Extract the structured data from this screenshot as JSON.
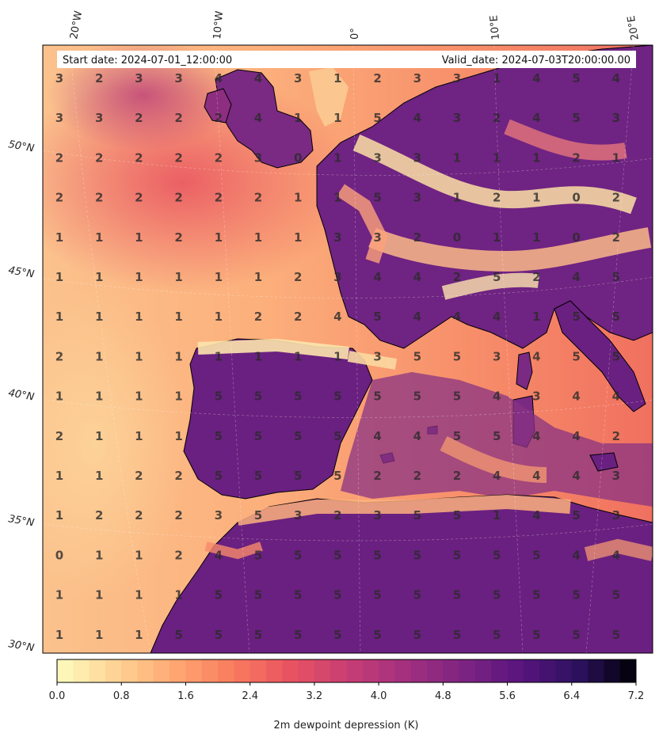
{
  "header": {
    "start_date": "Start date: 2024-07-01_12:00:00",
    "valid_date": "Valid_date: 2024-07-03T20:00:00.00"
  },
  "axes": {
    "lon_labels": [
      "20°W",
      "10°W",
      "0°",
      "10°E",
      "20°E"
    ],
    "lat_labels": [
      "50°N",
      "45°N",
      "40°N",
      "35°N",
      "30°N"
    ]
  },
  "colorbar": {
    "label": "2m dewpoint depression (K)",
    "ticks": [
      "0.0",
      "0.8",
      "1.6",
      "2.4",
      "3.2",
      "4.0",
      "4.8",
      "5.6",
      "6.4",
      "7.2"
    ],
    "min": 0.0,
    "max": 7.2,
    "levels": 36,
    "colormap": "magma_r"
  },
  "colors": {
    "ocean_base": "#f9a46e",
    "dry_land": "#6a2080",
    "coastline": "#000000"
  },
  "chart_data": {
    "type": "heatmap",
    "values_grid": [
      [
        3,
        2,
        3,
        3,
        4,
        4,
        3,
        1,
        2,
        3,
        3,
        1,
        4,
        5,
        4
      ],
      [
        3,
        3,
        2,
        2,
        2,
        4,
        1,
        1,
        5,
        4,
        3,
        2,
        4,
        5,
        3
      ],
      [
        2,
        2,
        2,
        2,
        2,
        3,
        0,
        1,
        3,
        3,
        1,
        1,
        1,
        2,
        1
      ],
      [
        2,
        2,
        2,
        2,
        2,
        2,
        1,
        1,
        5,
        3,
        1,
        2,
        1,
        0,
        2
      ],
      [
        1,
        1,
        1,
        2,
        1,
        1,
        1,
        3,
        3,
        2,
        0,
        1,
        1,
        0,
        2
      ],
      [
        1,
        1,
        1,
        1,
        1,
        1,
        2,
        3,
        4,
        4,
        2,
        5,
        2,
        4,
        5
      ],
      [
        1,
        1,
        1,
        1,
        1,
        2,
        2,
        4,
        5,
        4,
        4,
        4,
        1,
        5,
        5
      ],
      [
        2,
        1,
        1,
        1,
        1,
        1,
        1,
        1,
        3,
        5,
        5,
        3,
        4,
        5,
        5
      ],
      [
        1,
        1,
        1,
        1,
        5,
        5,
        5,
        5,
        5,
        5,
        5,
        4,
        3,
        4,
        4
      ],
      [
        2,
        1,
        1,
        1,
        5,
        5,
        5,
        5,
        4,
        4,
        5,
        5,
        4,
        4,
        2
      ],
      [
        1,
        1,
        2,
        2,
        5,
        5,
        5,
        5,
        2,
        2,
        2,
        4,
        4,
        4,
        3
      ],
      [
        1,
        2,
        2,
        2,
        3,
        5,
        3,
        2,
        3,
        5,
        5,
        1,
        4,
        5,
        3
      ],
      [
        0,
        1,
        1,
        2,
        4,
        5,
        5,
        5,
        5,
        5,
        5,
        5,
        5,
        4,
        4
      ],
      [
        1,
        1,
        1,
        1,
        5,
        5,
        5,
        5,
        5,
        5,
        5,
        5,
        5,
        5,
        5
      ],
      [
        1,
        1,
        1,
        5,
        5,
        5,
        5,
        5,
        5,
        5,
        5,
        5,
        5,
        5,
        5
      ]
    ]
  }
}
